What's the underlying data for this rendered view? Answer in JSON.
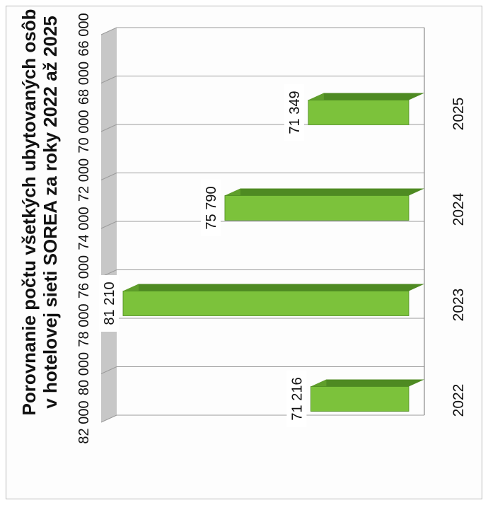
{
  "chart_data": {
    "type": "bar",
    "orientation": "horizontal-3d",
    "title_lines": [
      "Porovnanie počtu všetkých ubytovaných osôb",
      "v hotelovej sieti SOREA za roky 2022  až 2025"
    ],
    "categories": [
      "2022",
      "2023",
      "2024",
      "2025"
    ],
    "values": [
      71216,
      81210,
      75790,
      71349
    ],
    "data_labels": [
      "71 216",
      "81 210",
      "75 790",
      "71 349"
    ],
    "value_ticks": [
      "66 000",
      "68 000",
      "70 000",
      "72 000",
      "74 000",
      "76 000",
      "78 000",
      "80 000",
      "82 000"
    ],
    "value_axis_range": [
      66000,
      82000
    ],
    "grid": true,
    "legend": "none",
    "colors": {
      "bar_face": "#7cc23b",
      "bar_top": "#4e8a22",
      "bar_end": "#5f9e2b",
      "floor": "#9a9a9a",
      "gridline": "#9b9b9b",
      "label_bg": "#ffffff"
    }
  }
}
